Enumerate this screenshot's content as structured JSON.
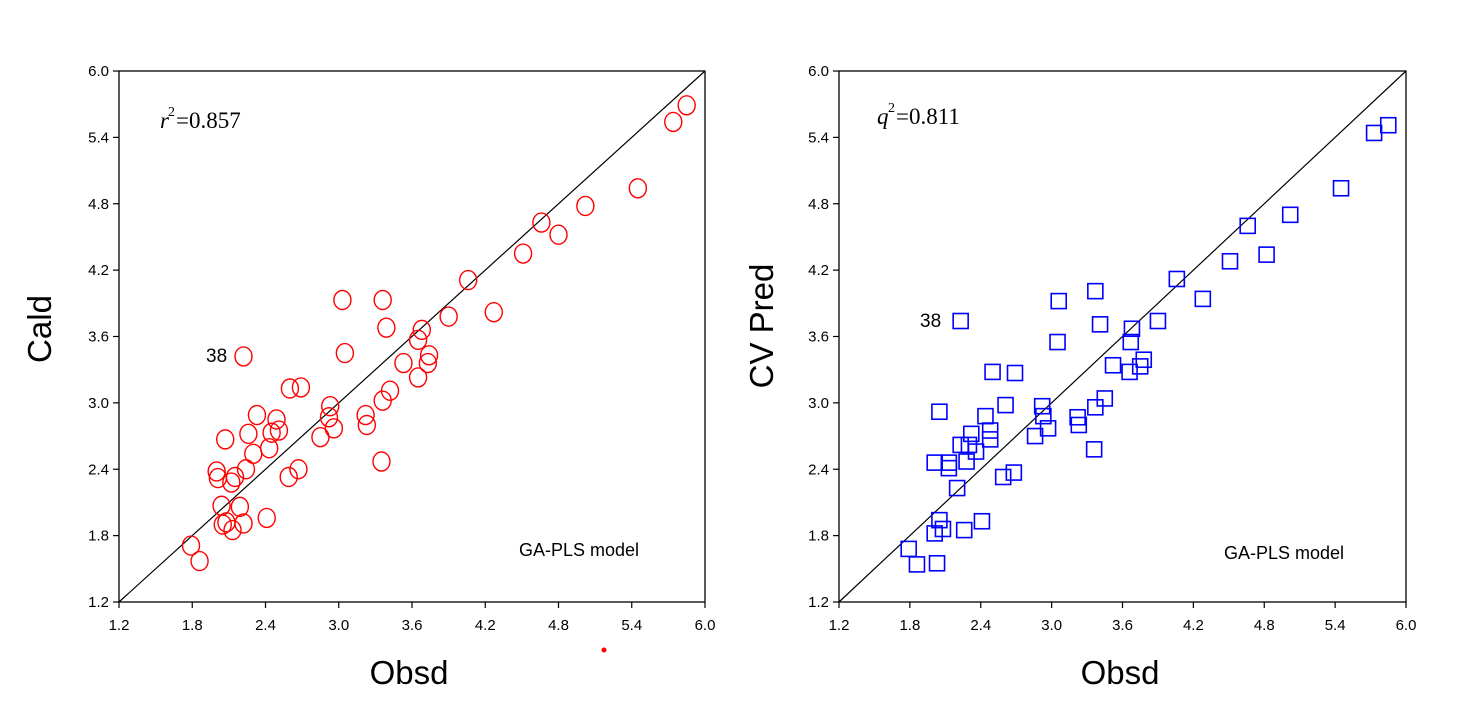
{
  "chart_data": [
    {
      "type": "scatter",
      "panel": "left",
      "title": "",
      "xlabel": "Obsd",
      "ylabel": "Cald",
      "xlim": [
        1.2,
        6.0
      ],
      "ylim": [
        1.2,
        6.0
      ],
      "xticks": [
        "1.2",
        "1.8",
        "2.4",
        "3.0",
        "3.6",
        "4.2",
        "4.8",
        "5.4",
        "6.0"
      ],
      "yticks": [
        "1.2",
        "1.8",
        "2.4",
        "3.0",
        "3.6",
        "4.2",
        "4.8",
        "5.4",
        "6.0"
      ],
      "marker": "circle",
      "marker_color": "#ff0000",
      "identity_line": true,
      "grid": false,
      "stat": {
        "symbol": "r",
        "sup": "2",
        "text": "=0.857"
      },
      "model_label": "GA-PLS model",
      "annotations": [
        {
          "text": "38",
          "x": 2.2,
          "y": 3.42
        }
      ],
      "x": [
        1.79,
        1.86,
        2.01,
        2.04,
        2.05,
        2.07,
        2.12,
        2.13,
        2.15,
        2.19,
        2.22,
        2.24,
        2.26,
        2.3,
        2.33,
        2.41,
        2.43,
        2.49,
        2.51,
        2.59,
        2.6,
        2.67,
        2.69,
        2.85,
        2.92,
        2.93,
        2.96,
        3.03,
        3.05,
        3.22,
        3.23,
        3.35,
        3.36,
        3.36,
        3.39,
        3.42,
        3.53,
        3.65,
        3.65,
        3.68,
        3.73,
        3.74,
        3.9,
        4.06,
        4.27,
        4.51,
        4.66,
        4.8,
        5.02,
        5.45,
        5.74,
        5.85,
        2.0,
        2.08,
        2.22,
        2.45
      ],
      "y": [
        1.71,
        1.57,
        2.32,
        2.07,
        1.9,
        2.67,
        2.28,
        1.85,
        2.33,
        2.06,
        3.42,
        2.4,
        2.72,
        2.54,
        2.89,
        1.96,
        2.59,
        2.85,
        2.75,
        2.33,
        3.13,
        2.4,
        3.14,
        2.69,
        2.87,
        2.97,
        2.77,
        3.93,
        3.45,
        2.89,
        2.8,
        2.47,
        3.02,
        3.93,
        3.68,
        3.11,
        3.36,
        3.57,
        3.23,
        3.66,
        3.36,
        3.43,
        3.78,
        4.11,
        3.82,
        4.35,
        4.63,
        4.52,
        4.78,
        4.94,
        5.54,
        5.69,
        2.38,
        1.92,
        1.91,
        2.73
      ]
    },
    {
      "type": "scatter",
      "panel": "right",
      "title": "",
      "xlabel": "Obsd",
      "ylabel": "CV Pred",
      "xlim": [
        1.2,
        6.0
      ],
      "ylim": [
        1.2,
        6.0
      ],
      "xticks": [
        "1.2",
        "1.8",
        "2.4",
        "3.0",
        "3.6",
        "4.2",
        "4.8",
        "5.4",
        "6.0"
      ],
      "yticks": [
        "1.2",
        "1.8",
        "2.4",
        "3.0",
        "3.6",
        "4.2",
        "4.8",
        "5.4",
        "6.0"
      ],
      "marker": "square",
      "marker_color": "#0000ff",
      "identity_line": true,
      "grid": false,
      "stat": {
        "symbol": "q",
        "sup": "2",
        "text": "=0.811"
      },
      "model_label": "GA-PLS model",
      "annotations": [
        {
          "text": "38",
          "x": 2.2,
          "y": 3.75
        }
      ],
      "x": [
        1.79,
        1.86,
        2.01,
        2.01,
        2.03,
        2.05,
        2.05,
        2.08,
        2.13,
        2.13,
        2.2,
        2.23,
        2.23,
        2.26,
        2.28,
        2.3,
        2.32,
        2.36,
        2.41,
        2.44,
        2.48,
        2.48,
        2.5,
        2.59,
        2.61,
        2.68,
        2.69,
        2.86,
        2.92,
        2.93,
        2.97,
        3.05,
        3.06,
        3.22,
        3.23,
        3.36,
        3.37,
        3.37,
        3.41,
        3.45,
        3.52,
        3.66,
        3.67,
        3.68,
        3.75,
        3.78,
        3.9,
        4.06,
        4.28,
        4.51,
        4.66,
        4.82,
        5.02,
        5.45,
        5.73,
        5.85
      ],
      "y": [
        1.68,
        1.54,
        1.82,
        2.46,
        1.55,
        1.94,
        2.92,
        1.86,
        2.41,
        2.46,
        2.23,
        3.74,
        2.62,
        1.85,
        2.47,
        2.62,
        2.72,
        2.56,
        1.93,
        2.88,
        2.67,
        2.75,
        3.28,
        2.33,
        2.98,
        2.37,
        3.27,
        2.7,
        2.97,
        2.88,
        2.77,
        3.55,
        3.92,
        2.87,
        2.8,
        2.58,
        2.96,
        4.01,
        3.71,
        3.04,
        3.34,
        3.28,
        3.55,
        3.67,
        3.33,
        3.39,
        3.74,
        4.12,
        3.94,
        4.28,
        4.6,
        4.34,
        4.7,
        4.94,
        5.44,
        5.51
      ]
    }
  ]
}
